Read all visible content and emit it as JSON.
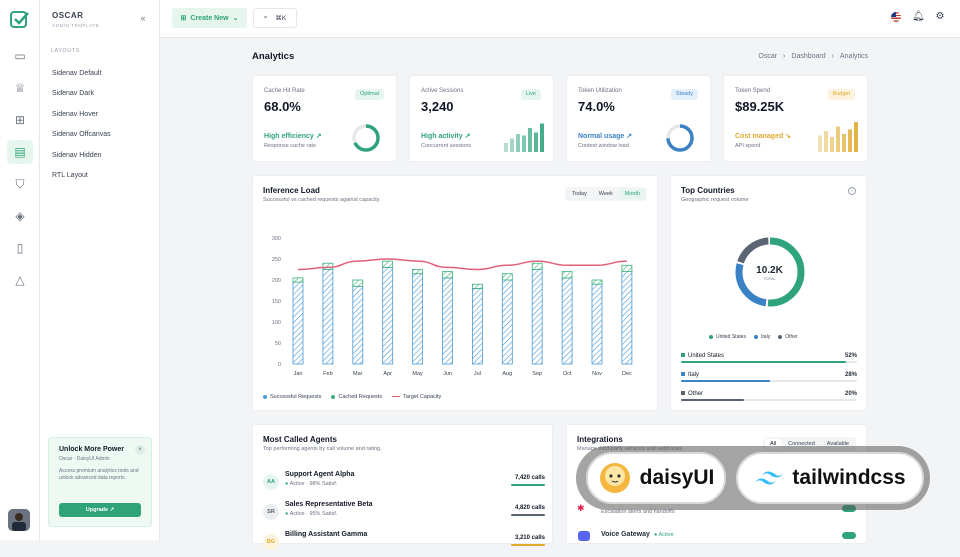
{
  "app": {
    "name": "OSCAR",
    "subtitle": "ADMIN TEMPLATE",
    "collapse_icon": "chevrons-left-icon"
  },
  "rail": {
    "icons": [
      "monitor-icon",
      "crown-icon",
      "grid-icon",
      "layout-icon",
      "shield-icon",
      "layers-icon",
      "clipboard-icon",
      "shapes-icon"
    ],
    "active_index": 3
  },
  "sidebar": {
    "section": "LAYOUTS",
    "items": [
      {
        "label": "Sidenav Default"
      },
      {
        "label": "Sidenav Dark"
      },
      {
        "label": "Sidenav Hover"
      },
      {
        "label": "Sidenav Offcanvas"
      },
      {
        "label": "Sidenav Hidden"
      },
      {
        "label": "RTL Layout"
      }
    ],
    "promo": {
      "title": "Unlock More Power",
      "subtitle": "Oscar - DaisyUI Admin",
      "desc": "Access premium analytics tools and unlock advanced data reports.",
      "button": "Upgrade ↗",
      "close": "×"
    }
  },
  "topbar": {
    "create_label": "Create New",
    "shortcut": "⌘K",
    "icons": [
      "flag-us-icon",
      "bell-icon",
      "settings-icon"
    ]
  },
  "page": {
    "title": "Analytics",
    "breadcrumb": [
      "Oscar",
      "Dashboard",
      "Analytics"
    ]
  },
  "kpis": [
    {
      "label": "Cache Hit Rate",
      "value": "68.0%",
      "badge": "Optimal",
      "status": "High efficiency ↗",
      "desc": "Response cache rate",
      "color": "#2fa37a",
      "badge_bg": "#e6f6ef",
      "visual": "ring",
      "fraction": 0.68
    },
    {
      "label": "Active Sessions",
      "value": "3,240",
      "badge": "Live",
      "status": "High activity ↗",
      "desc": "Concurrent sessions",
      "color": "#2fa37a",
      "badge_bg": "#e6f6ef",
      "visual": "bars",
      "bars": [
        0.3,
        0.45,
        0.6,
        0.55,
        0.8,
        0.65,
        0.95
      ]
    },
    {
      "label": "Token Utilization",
      "value": "74.0%",
      "badge": "Steady",
      "status": "Normal usage ↗",
      "desc": "Context window load",
      "color": "#3b82c4",
      "badge_bg": "#e3f0fb",
      "visual": "ring",
      "fraction": 0.74
    },
    {
      "label": "Token Spend",
      "value": "$89.25K",
      "badge": "Budget",
      "status": "Cost managed ↘",
      "desc": "API spend",
      "color": "#e0a92e",
      "badge_bg": "#fdf3dc",
      "visual": "bars",
      "bars": [
        0.55,
        0.7,
        0.5,
        0.85,
        0.6,
        0.75,
        1.0
      ]
    }
  ],
  "inference": {
    "title": "Inference Load",
    "subtitle": "Successful vs cached requests against capacity",
    "ranges": [
      "Today",
      "Week",
      "Month"
    ],
    "active_range": "Month",
    "legend": [
      {
        "label": "Successful Requests",
        "color": "#4a9ad8"
      },
      {
        "label": "Cached Requests",
        "color": "#3ab07a"
      },
      {
        "label": "Target Capacity",
        "color": "#e0607a"
      }
    ]
  },
  "chart_data": {
    "type": "bar",
    "categories": [
      "Jan",
      "Feb",
      "Mar",
      "Apr",
      "May",
      "Jun",
      "Jul",
      "Aug",
      "Sep",
      "Oct",
      "Nov",
      "Dec"
    ],
    "series": [
      {
        "name": "Successful Requests",
        "values": [
          195,
          225,
          185,
          230,
          215,
          205,
          180,
          200,
          225,
          205,
          190,
          220
        ]
      },
      {
        "name": "Cached Requests",
        "values": [
          10,
          15,
          15,
          15,
          10,
          15,
          10,
          15,
          15,
          15,
          10,
          15
        ]
      },
      {
        "name": "Target Capacity",
        "values": [
          225,
          230,
          245,
          250,
          245,
          230,
          225,
          235,
          245,
          235,
          235,
          245
        ]
      }
    ],
    "yticks": [
      0,
      50,
      100,
      150,
      200,
      250,
      300
    ],
    "ylim": [
      0,
      300
    ]
  },
  "countries": {
    "title": "Top Countries",
    "subtitle": "Geographic request volume",
    "total": "10.2K",
    "total_label": "TOTAL",
    "info_icon": "info-icon",
    "rows": [
      {
        "label": "United States",
        "pct": "52%",
        "value": 0.52,
        "color": "#2fa37a"
      },
      {
        "label": "Italy",
        "pct": "28%",
        "value": 0.28,
        "color": "#3b82c4"
      },
      {
        "label": "Other",
        "pct": "20%",
        "value": 0.2,
        "color": "#5b6472"
      }
    ]
  },
  "agents": {
    "title": "Most Called Agents",
    "subtitle": "Top performing agents by call volume and rating.",
    "rows": [
      {
        "initials": "AA",
        "name": "Support Agent Alpha",
        "status": "Active",
        "sat": "98% Satisf.",
        "calls": "7,420 calls",
        "color": "#2fa37a",
        "bg": "#e6f6ef"
      },
      {
        "initials": "SR",
        "name": "Sales Representative Beta",
        "status": "Active",
        "sat": "95% Satisf.",
        "calls": "4,820 calls",
        "color": "#5b6472",
        "bg": "#eceef1"
      },
      {
        "initials": "BG",
        "name": "Billing Assistant Gamma",
        "status": "",
        "sat": "",
        "calls": "3,210 calls",
        "color": "#e0a92e",
        "bg": "#fdf3dc"
      }
    ]
  },
  "integrations": {
    "title": "Integrations",
    "subtitle": "Manage third-party services and webhooks",
    "tabs": [
      "All",
      "Connected",
      "Available"
    ],
    "active_tab": "All",
    "rows": [
      {
        "name": "",
        "desc": "Escalation alerts and handoffs",
        "icon": "slack-icon"
      },
      {
        "name": "Voice Gateway",
        "status": "● Active",
        "icon": "discord-icon"
      }
    ]
  },
  "badges": [
    {
      "label": "daisyUI",
      "icon": "daisyui-logo-icon"
    },
    {
      "label": "tailwindcss",
      "icon": "tailwind-logo-icon"
    }
  ]
}
